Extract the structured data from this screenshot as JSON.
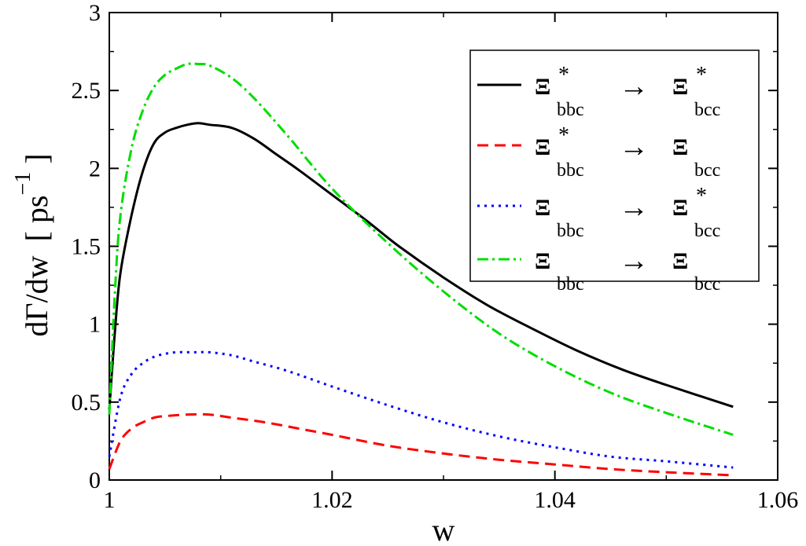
{
  "chart_data": {
    "type": "line",
    "xlabel": "w",
    "ylabel_main": "dΓ/dw",
    "ylabel_unit_open": "[ ps",
    "ylabel_unit_exp": "−1",
    "ylabel_unit_close": "]",
    "xlim": [
      1.0,
      1.06
    ],
    "ylim": [
      0,
      3
    ],
    "xticks": [
      1.0,
      1.02,
      1.04,
      1.06
    ],
    "xtick_labels": [
      "1",
      "1.02",
      "1.04",
      "1.06"
    ],
    "yticks": [
      0,
      0.5,
      1,
      1.5,
      2,
      2.5,
      3
    ],
    "ytick_labels": [
      "0",
      "0.5",
      "1",
      "1.5",
      "2",
      "2.5",
      "3"
    ],
    "legend_position": "top-right",
    "arrow_symbol": "→",
    "series": [
      {
        "name": "Ξ*bbc → Ξ*bcc",
        "from": {
          "base": "Ξ",
          "sub": "bbc",
          "sup": "*"
        },
        "to": {
          "base": "Ξ",
          "sub": "bcc",
          "sup": "*"
        },
        "color": "#000000",
        "dash": "",
        "x": [
          1.0,
          1.0005,
          1.001,
          1.002,
          1.003,
          1.004,
          1.005,
          1.006,
          1.007,
          1.008,
          1.009,
          1.011,
          1.013,
          1.015,
          1.017,
          1.02,
          1.023,
          1.026,
          1.03,
          1.034,
          1.038,
          1.042,
          1.046,
          1.05,
          1.056
        ],
        "y": [
          0.45,
          0.95,
          1.33,
          1.7,
          1.98,
          2.16,
          2.23,
          2.26,
          2.28,
          2.29,
          2.28,
          2.26,
          2.19,
          2.09,
          1.99,
          1.83,
          1.67,
          1.5,
          1.3,
          1.12,
          0.97,
          0.83,
          0.71,
          0.61,
          0.47
        ]
      },
      {
        "name": "Ξ*bbc → Ξbcc",
        "from": {
          "base": "Ξ",
          "sub": "bbc",
          "sup": "*"
        },
        "to": {
          "base": "Ξ",
          "sub": "bcc",
          "sup": ""
        },
        "color": "#ff0000",
        "dash": "14,8",
        "x": [
          1.0,
          1.001,
          1.002,
          1.003,
          1.004,
          1.005,
          1.007,
          1.009,
          1.011,
          1.014,
          1.017,
          1.02,
          1.025,
          1.03,
          1.035,
          1.04,
          1.045,
          1.05,
          1.056
        ],
        "y": [
          0.07,
          0.25,
          0.33,
          0.37,
          0.4,
          0.41,
          0.42,
          0.42,
          0.4,
          0.37,
          0.33,
          0.29,
          0.22,
          0.17,
          0.13,
          0.1,
          0.07,
          0.05,
          0.03
        ]
      },
      {
        "name": "Ξbbc → Ξ*bcc",
        "from": {
          "base": "Ξ",
          "sub": "bbc",
          "sup": ""
        },
        "to": {
          "base": "Ξ",
          "sub": "bcc",
          "sup": "*"
        },
        "color": "#0000ff",
        "dash": "3,6",
        "x": [
          1.0,
          1.001,
          1.002,
          1.003,
          1.004,
          1.005,
          1.006,
          1.007,
          1.008,
          1.009,
          1.011,
          1.013,
          1.016,
          1.02,
          1.025,
          1.03,
          1.035,
          1.04,
          1.045,
          1.05,
          1.056
        ],
        "y": [
          0.15,
          0.53,
          0.68,
          0.75,
          0.79,
          0.81,
          0.82,
          0.82,
          0.82,
          0.82,
          0.8,
          0.76,
          0.7,
          0.6,
          0.48,
          0.37,
          0.28,
          0.21,
          0.15,
          0.12,
          0.08
        ]
      },
      {
        "name": "Ξbbc → Ξbcc",
        "from": {
          "base": "Ξ",
          "sub": "bbc",
          "sup": ""
        },
        "to": {
          "base": "Ξ",
          "sub": "bcc",
          "sup": ""
        },
        "color": "#00dd00",
        "dash": "14,5,3,5",
        "x": [
          1.0,
          1.0005,
          1.001,
          1.002,
          1.003,
          1.004,
          1.005,
          1.006,
          1.007,
          1.008,
          1.009,
          1.011,
          1.013,
          1.016,
          1.02,
          1.025,
          1.03,
          1.035,
          1.04,
          1.045,
          1.05,
          1.056
        ],
        "y": [
          0.42,
          1.2,
          1.7,
          2.13,
          2.37,
          2.52,
          2.6,
          2.64,
          2.67,
          2.67,
          2.66,
          2.58,
          2.45,
          2.21,
          1.87,
          1.52,
          1.21,
          0.94,
          0.73,
          0.56,
          0.43,
          0.29
        ]
      }
    ]
  }
}
